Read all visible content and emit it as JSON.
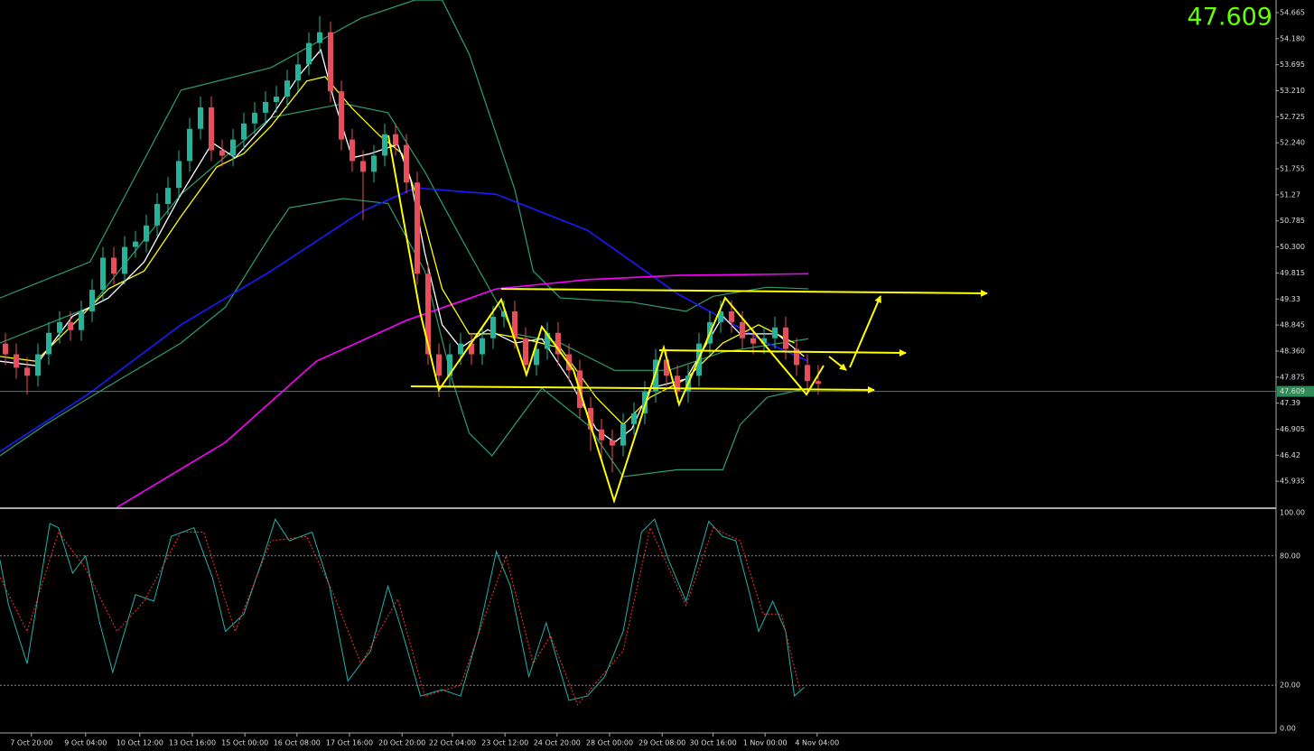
{
  "chart_data": [
    {
      "type": "candlestick",
      "xlim": [
        -0.5,
        117.25
      ],
      "xticks": [
        {
          "value": 2.4,
          "label": "7 Oct 20:00"
        },
        {
          "value": 7.4,
          "label": "9 Oct 04:00"
        },
        {
          "value": 12.4,
          "label": "10 Oct 12:00"
        },
        {
          "value": 17.25,
          "label": "13 Oct 16:00"
        },
        {
          "value": 22.1,
          "label": "15 Oct 00:00"
        },
        {
          "value": 26.9,
          "label": "16 Oct 08:00"
        },
        {
          "value": 31.75,
          "label": "17 Oct 16:00"
        },
        {
          "value": 36.6,
          "label": "20 Oct 20:00"
        },
        {
          "value": 41.25,
          "label": "22 Oct 04:00"
        },
        {
          "value": 46.1,
          "label": "23 Oct 12:00"
        },
        {
          "value": 50.9,
          "label": "24 Oct 20:00"
        },
        {
          "value": 55.75,
          "label": "28 Oct 00:00"
        },
        {
          "value": 60.6,
          "label": "29 Oct 08:00"
        },
        {
          "value": 65.3,
          "label": "30 Oct 16:00"
        },
        {
          "value": 70.1,
          "label": "1 Nov 00:00"
        },
        {
          "value": 74.9,
          "label": "4 Nov 04:00"
        }
      ],
      "ylim": [
        45.45,
        54.9
      ],
      "yticks": [
        54.665,
        {
          "value": 54.18,
          "label": "54.180"
        },
        53.695,
        {
          "value": 53.21,
          "label": "53.210"
        },
        52.725,
        {
          "value": 52.24,
          "label": "52.240"
        },
        51.755,
        51.27,
        50.785,
        {
          "value": 50.3,
          "label": "50.300"
        },
        49.815,
        49.33,
        48.845,
        {
          "value": 48.36,
          "label": "48.360"
        },
        47.875,
        47.39,
        46.905,
        46.42,
        45.935
      ],
      "up_color": "#26b39a",
      "down_color": "#e84d5b",
      "open": [
        48.5,
        48.3,
        48.05,
        47.9,
        48.3,
        48.7,
        48.9,
        48.75,
        49.1,
        49.5,
        50.1,
        49.8,
        50.3,
        50.4,
        50.7,
        51.1,
        51.4,
        51.9,
        52.5,
        52.9,
        52.1,
        52.0,
        52.3,
        52.6,
        52.8,
        53.0,
        53.1,
        53.4,
        53.7,
        54.1,
        54.3,
        53.2,
        52.3,
        51.9,
        51.7,
        52.0,
        52.4,
        52.2,
        51.5,
        49.8,
        48.3,
        47.9,
        48.3,
        48.5,
        48.3,
        48.6,
        49.0,
        49.1,
        48.6,
        48.1,
        48.4,
        48.7,
        48.3,
        48.0,
        47.3,
        46.9,
        46.7,
        46.6,
        47.0,
        47.2,
        47.6,
        48.2,
        47.9,
        47.6,
        47.9,
        48.5,
        48.9,
        49.1,
        48.9,
        48.6,
        48.5,
        48.6,
        48.8,
        48.4,
        48.1,
        47.8
      ],
      "high": [
        48.7,
        48.5,
        48.25,
        48.5,
        48.9,
        49.1,
        49.1,
        49.3,
        49.7,
        50.3,
        50.3,
        50.5,
        50.6,
        50.9,
        51.3,
        51.6,
        52.1,
        52.7,
        53.1,
        53.1,
        52.3,
        52.5,
        52.8,
        53.0,
        53.2,
        53.3,
        53.6,
        53.9,
        54.3,
        54.6,
        54.5,
        53.4,
        52.5,
        52.1,
        52.2,
        52.6,
        52.6,
        52.4,
        51.7,
        50.0,
        48.5,
        48.5,
        48.7,
        48.7,
        48.8,
        49.2,
        49.3,
        49.3,
        48.8,
        48.6,
        48.9,
        48.9,
        48.5,
        48.2,
        47.5,
        47.1,
        46.9,
        47.2,
        47.4,
        47.8,
        48.4,
        48.4,
        48.1,
        48.1,
        48.7,
        49.1,
        49.3,
        49.3,
        49.1,
        48.8,
        48.8,
        49.0,
        49.0,
        48.6,
        48.3,
        48.1
      ],
      "low": [
        48.1,
        47.85,
        47.55,
        47.7,
        48.1,
        48.5,
        48.55,
        48.55,
        48.9,
        49.3,
        49.6,
        49.6,
        50.1,
        50.2,
        50.5,
        50.9,
        51.2,
        51.7,
        52.3,
        51.9,
        51.8,
        51.8,
        52.1,
        52.4,
        52.6,
        52.8,
        52.9,
        53.2,
        53.5,
        53.9,
        53.0,
        52.1,
        51.7,
        50.8,
        51.5,
        51.8,
        52.0,
        51.3,
        49.6,
        48.1,
        47.5,
        47.7,
        48.1,
        48.1,
        48.1,
        48.4,
        48.8,
        48.4,
        47.9,
        47.9,
        48.2,
        48.1,
        47.8,
        47.1,
        46.5,
        46.3,
        46.1,
        46.4,
        46.8,
        47.0,
        47.4,
        47.7,
        47.4,
        47.4,
        47.7,
        48.3,
        48.7,
        48.7,
        48.4,
        48.3,
        48.3,
        48.4,
        48.2,
        47.9,
        47.6,
        47.55
      ],
      "close": [
        48.3,
        48.05,
        47.9,
        48.3,
        48.7,
        48.9,
        48.75,
        49.1,
        49.5,
        50.1,
        49.8,
        50.3,
        50.4,
        50.7,
        51.1,
        51.4,
        51.9,
        52.5,
        52.9,
        52.1,
        52.0,
        52.3,
        52.6,
        52.8,
        53.0,
        53.1,
        53.4,
        53.7,
        54.1,
        54.3,
        53.2,
        52.3,
        51.9,
        51.7,
        52.0,
        52.4,
        52.2,
        51.5,
        49.8,
        48.3,
        47.9,
        48.3,
        48.5,
        48.3,
        48.6,
        49.0,
        49.1,
        48.6,
        48.1,
        48.4,
        48.7,
        48.3,
        48.0,
        47.3,
        46.9,
        46.7,
        46.6,
        47.0,
        47.2,
        47.6,
        48.2,
        47.9,
        47.6,
        47.9,
        48.5,
        48.9,
        49.1,
        48.9,
        48.6,
        48.5,
        48.6,
        48.8,
        48.4,
        48.1,
        47.8,
        47.75
      ],
      "current_price": 47.609,
      "current_price_color": "#2e8b57",
      "lines": [
        {
          "color": "#2e9e6e",
          "width": 1.2,
          "x": [
            -0.5,
            7.8,
            16.2,
            24.5,
            32.8,
            37.8,
            40.3,
            42.8,
            47,
            48.7,
            51.2,
            57.8,
            62.8,
            65.3,
            70.3,
            74.1
          ],
          "values": [
            49.35,
            50.02,
            53.22,
            53.64,
            54.56,
            54.9,
            54.9,
            53.89,
            51.37,
            49.85,
            49.35,
            49.27,
            49.1,
            49.38,
            49.55,
            49.52
          ]
        },
        {
          "color": "#2e9e6e",
          "width": 1.2,
          "x": [
            -0.5,
            7.8,
            16.2,
            24.5,
            31.2,
            35.3,
            38.7,
            42.8,
            47,
            51.2,
            56.2,
            61.2,
            66.2,
            74.1
          ],
          "values": [
            48.51,
            49.18,
            51.28,
            52.71,
            52.97,
            52.8,
            51.7,
            50.19,
            48.68,
            48.51,
            48.0,
            48.0,
            48.34,
            48.59
          ]
        },
        {
          "color": "#2e9e6e",
          "width": 1.2,
          "x": [
            -0.5,
            3.7,
            7.8,
            16.2,
            20.3,
            24.5,
            26.2,
            31.2,
            35.3,
            38.7,
            41.2,
            42.8,
            44.9,
            47,
            49.5,
            53.7,
            57,
            62,
            66.2,
            67.8,
            70.3,
            74.1
          ],
          "values": [
            46.41,
            46.99,
            47.5,
            48.51,
            49.18,
            50.53,
            51.03,
            51.2,
            51.11,
            49.85,
            47.84,
            46.83,
            46.41,
            46.99,
            47.67,
            46.99,
            46.02,
            46.15,
            46.15,
            46.99,
            47.5,
            47.67
          ]
        },
        {
          "color": "#1a1aff",
          "width": 1.6,
          "x": [
            -0.5,
            7.8,
            16.2,
            24.5,
            32.8,
            37.8,
            45.3,
            53.7,
            62,
            70.3,
            74.1
          ],
          "values": [
            46.49,
            47.58,
            48.85,
            49.85,
            50.95,
            51.4,
            51.28,
            50.61,
            49.43,
            48.51,
            48.17
          ]
        },
        {
          "color": "#ff00ff",
          "width": 1.6,
          "x": [
            10.3,
            20.3,
            28.7,
            37,
            45.3,
            53.7,
            62,
            74.1
          ],
          "values": [
            45.45,
            46.66,
            48.17,
            48.93,
            49.52,
            49.69,
            49.77,
            49.8
          ]
        },
        {
          "color": "#ffff00",
          "width": 1.3,
          "x": [
            -0.5,
            2.8,
            6.2,
            9.5,
            12.8,
            16.2,
            19.5,
            22,
            24.5,
            27.8,
            29.5,
            32,
            34.5,
            36.6,
            38.3,
            40.3,
            42.8,
            45.3,
            47.8,
            51.2,
            54.5,
            57,
            59.5,
            62.8,
            66.2,
            69.5,
            72.8
          ],
          "values": [
            48.26,
            48.17,
            48.85,
            49.52,
            49.85,
            50.87,
            51.79,
            52.04,
            52.55,
            53.39,
            53.47,
            52.88,
            52.38,
            52.04,
            51.03,
            49.52,
            48.68,
            48.68,
            48.59,
            48.42,
            47.5,
            46.99,
            47.5,
            47.84,
            48.51,
            48.85,
            48.51
          ]
        },
        {
          "color": "#ffffff",
          "width": 1.3,
          "x": [
            -0.5,
            2.8,
            6.2,
            9.5,
            12.8,
            16.2,
            19.1,
            21.2,
            24.5,
            27,
            29.1,
            30.3,
            32,
            33.7,
            36.2,
            37.4,
            38.7,
            40.3,
            42,
            44.5,
            47,
            49.5,
            52,
            54.5,
            56.2,
            57.8,
            59.5,
            62.8,
            66.2,
            67.8,
            71.2,
            73.7
          ],
          "values": [
            48.17,
            48.09,
            49.01,
            49.35,
            50.02,
            51.28,
            52.24,
            51.96,
            52.71,
            53.47,
            53.97,
            53.05,
            51.96,
            52.04,
            52.21,
            51.54,
            50.19,
            48.85,
            48.42,
            48.76,
            48.51,
            48.59,
            47.84,
            46.91,
            46.66,
            46.91,
            47.67,
            47.84,
            49.01,
            48.68,
            48.68,
            48.26
          ]
        }
      ]
    },
    {
      "type": "line",
      "xlim": [
        -0.5,
        117.25
      ],
      "ylim": [
        0,
        100
      ],
      "yticks": [
        {
          "value": 100,
          "label": "100.00"
        },
        {
          "value": 80,
          "label": "80.00"
        },
        {
          "value": 20,
          "label": "20.00"
        },
        {
          "value": 0,
          "label": "0.00"
        }
      ],
      "series": [
        {
          "color": "#20b2aa",
          "dash": false,
          "x": [
            -0.5,
            0.3,
            2,
            4.1,
            4.9,
            6.2,
            7.4,
            8.7,
            9.9,
            12,
            13.7,
            15.3,
            17.4,
            19.1,
            20.3,
            22,
            23.7,
            24.9,
            26.2,
            28.3,
            29.9,
            31.6,
            33.7,
            35.3,
            36.6,
            38.3,
            40.3,
            42,
            43.7,
            45.3,
            46.6,
            48.3,
            49.9,
            52,
            53.7,
            55.3,
            57,
            58.7,
            59.9,
            61.2,
            62.8,
            64.9,
            66.2,
            67.4,
            68.7,
            69.5,
            70.8,
            72,
            72.8,
            73.7
          ],
          "values": [
            78,
            57,
            30,
            95,
            93,
            72,
            80,
            49,
            26,
            62,
            59,
            89,
            93,
            70,
            45,
            53,
            78,
            97,
            87,
            91,
            66,
            22,
            36,
            66,
            45,
            15,
            18,
            15,
            45,
            82,
            66,
            24,
            49,
            13,
            15,
            24,
            45,
            91,
            97,
            78,
            59,
            96,
            89,
            87,
            62,
            45,
            59,
            45,
            15,
            19
          ]
        },
        {
          "color": "#ff3030",
          "dash": true,
          "x": [
            -0.5,
            2,
            4.9,
            7.4,
            10.3,
            12.8,
            16.2,
            18.3,
            21.2,
            24.5,
            27.8,
            30.3,
            32.8,
            36.2,
            38.7,
            42,
            46.2,
            48.7,
            50.3,
            52.8,
            57,
            59.5,
            62.8,
            65.3,
            67.8,
            69.9,
            71.6,
            73.3
          ],
          "values": [
            70,
            45,
            91,
            74,
            45,
            59,
            91,
            91,
            45,
            87,
            89,
            62,
            30,
            60,
            15,
            20,
            80,
            30,
            43,
            11,
            36,
            93,
            57,
            93,
            87,
            53,
            53,
            18
          ]
        }
      ]
    }
  ]
}
